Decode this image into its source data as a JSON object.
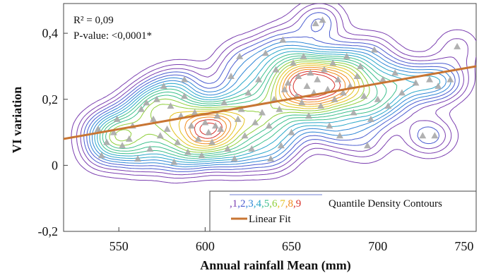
{
  "chart_data": {
    "type": "scatter",
    "title": "",
    "xlabel": "Annual rainfall Mean (mm)",
    "ylabel": "VI variation",
    "xlim": [
      518,
      757
    ],
    "ylim": [
      -0.2,
      0.49
    ],
    "xticks": [
      550,
      600,
      650,
      700,
      750
    ],
    "xtick_labels": [
      "550",
      "600",
      "650",
      "700",
      "750"
    ],
    "yticks": [
      -0.2,
      0,
      0.2,
      0.4
    ],
    "ytick_labels": [
      "-0,2",
      "0",
      "0,2",
      "0,4"
    ],
    "stats": {
      "r2_label": "R² = 0,09",
      "pvalue_label": "P-value: <0,0001*"
    },
    "legend": {
      "placement": "bottom-right",
      "contour_digits": [
        ",1",
        ",2",
        ",3",
        ",4",
        ",5",
        ",6",
        ",7",
        ",8",
        ",9"
      ],
      "contour_label": "Quantile Density Contours",
      "fit_label": "Linear Fit"
    },
    "colors": {
      "fit_line": "#c87533",
      "points": "#a8a8a8",
      "contours": [
        "#7b3fb0",
        "#4a5cd0",
        "#2f86d6",
        "#2aa7c9",
        "#3cbf8c",
        "#8fcf3a",
        "#e3c21f",
        "#f08a1c",
        "#d8302a"
      ]
    },
    "linear_fit": {
      "x": [
        518,
        757
      ],
      "y": [
        0.08,
        0.3
      ]
    },
    "points": [
      [
        538,
        0.11
      ],
      [
        540,
        0.03
      ],
      [
        543,
        0.07
      ],
      [
        547,
        0.1
      ],
      [
        549,
        0.14
      ],
      [
        552,
        0.06
      ],
      [
        556,
        0.08
      ],
      [
        558,
        0.12
      ],
      [
        561,
        0.02
      ],
      [
        563,
        0.17
      ],
      [
        566,
        0.19
      ],
      [
        568,
        0.05
      ],
      [
        570,
        0.14
      ],
      [
        572,
        0.2
      ],
      [
        574,
        0.09
      ],
      [
        576,
        0.24
      ],
      [
        578,
        0.11
      ],
      [
        580,
        0.18
      ],
      [
        582,
        0.01
      ],
      [
        584,
        0.07
      ],
      [
        586,
        0.15
      ],
      [
        588,
        0.21
      ],
      [
        590,
        0.04
      ],
      [
        592,
        0.12
      ],
      [
        594,
        0.16
      ],
      [
        596,
        0.08
      ],
      [
        598,
        0.03
      ],
      [
        600,
        0.13
      ],
      [
        602,
        0.1
      ],
      [
        604,
        0.07
      ],
      [
        606,
        0.12
      ],
      [
        607,
        0.15
      ],
      [
        609,
        0.11
      ],
      [
        611,
        0.19
      ],
      [
        613,
        0.05
      ],
      [
        615,
        0.27
      ],
      [
        617,
        0.02
      ],
      [
        619,
        0.14
      ],
      [
        621,
        0.17
      ],
      [
        623,
        0.09
      ],
      [
        625,
        0.22
      ],
      [
        627,
        0.05
      ],
      [
        629,
        0.13
      ],
      [
        631,
        0.26
      ],
      [
        633,
        0.16
      ],
      [
        635,
        0.34
      ],
      [
        637,
        0.12
      ],
      [
        638,
        0.02
      ],
      [
        640,
        0.2
      ],
      [
        641,
        0.29
      ],
      [
        643,
        0.17
      ],
      [
        645,
        0.38
      ],
      [
        646,
        0.23
      ],
      [
        648,
        0.25
      ],
      [
        650,
        0.1
      ],
      [
        651,
        0.31
      ],
      [
        653,
        0.21
      ],
      [
        654,
        0.27
      ],
      [
        656,
        0.19
      ],
      [
        657,
        0.33
      ],
      [
        659,
        0.24
      ],
      [
        660,
        0.15
      ],
      [
        661,
        0.28
      ],
      [
        663,
        0.22
      ],
      [
        664,
        0.43
      ],
      [
        665,
        0.26
      ],
      [
        667,
        0.18
      ],
      [
        668,
        0.44
      ],
      [
        669,
        0.29
      ],
      [
        671,
        0.23
      ],
      [
        672,
        0.12
      ],
      [
        674,
        0.31
      ],
      [
        675,
        0.2
      ],
      [
        677,
        0.26
      ],
      [
        678,
        0.09
      ],
      [
        680,
        0.22
      ],
      [
        682,
        0.33
      ],
      [
        684,
        0.24
      ],
      [
        686,
        0.16
      ],
      [
        688,
        0.27
      ],
      [
        690,
        0.3
      ],
      [
        692,
        0.21
      ],
      [
        694,
        0.06
      ],
      [
        696,
        0.14
      ],
      [
        698,
        0.35
      ],
      [
        700,
        0.2
      ],
      [
        703,
        0.26
      ],
      [
        706,
        0.18
      ],
      [
        710,
        0.28
      ],
      [
        714,
        0.22
      ],
      [
        722,
        0.25
      ],
      [
        726,
        0.09
      ],
      [
        730,
        0.26
      ],
      [
        733,
        0.09
      ],
      [
        735,
        0.24
      ],
      [
        742,
        0.26
      ],
      [
        746,
        0.36
      ],
      [
        588,
        0.26
      ],
      [
        620,
        0.33
      ],
      [
        644,
        0.06
      ]
    ]
  }
}
